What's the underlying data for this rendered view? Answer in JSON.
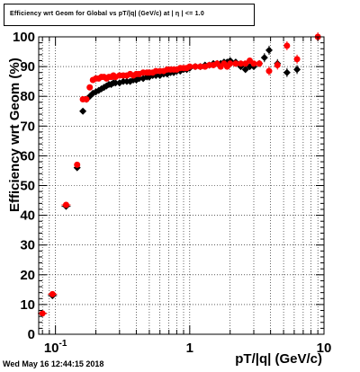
{
  "chart_data": {
    "type": "scatter",
    "title": "Efficiency wrt Geom for Global vs pT/|q| (GeV/c) at | η | <= 1.0",
    "xlabel": "pT/|q| (GeV/c)",
    "ylabel": "Efficiency wrt Geom (%)",
    "xscale": "log",
    "xlim": [
      0.075,
      10
    ],
    "ylim": [
      0,
      100
    ],
    "xticks": [
      {
        "value": 0.1,
        "label": "10^{-1}"
      },
      {
        "value": 1,
        "label": "1"
      },
      {
        "value": 10,
        "label": "10"
      }
    ],
    "yticks": [
      0,
      10,
      20,
      30,
      40,
      50,
      60,
      70,
      80,
      90,
      100
    ],
    "grid": true,
    "series": [
      {
        "marker": "diamond",
        "color": "#000000",
        "x": [
          0.08,
          0.095,
          0.12,
          0.145,
          0.16,
          0.17,
          0.18,
          0.19,
          0.2,
          0.21,
          0.22,
          0.23,
          0.24,
          0.25,
          0.26,
          0.27,
          0.28,
          0.3,
          0.32,
          0.34,
          0.36,
          0.38,
          0.4,
          0.42,
          0.45,
          0.48,
          0.5,
          0.53,
          0.56,
          0.6,
          0.64,
          0.68,
          0.72,
          0.76,
          0.8,
          0.85,
          0.9,
          0.95,
          1.0,
          1.1,
          1.2,
          1.3,
          1.4,
          1.5,
          1.6,
          1.7,
          1.8,
          1.9,
          2.0,
          2.2,
          2.4,
          2.6,
          2.8,
          3.0,
          3.3,
          3.6,
          3.9,
          4.5,
          5.3,
          6.3
        ],
        "y": [
          7,
          13,
          43,
          56,
          75,
          79,
          80,
          81,
          81.5,
          82,
          82.5,
          83,
          83.5,
          84,
          84,
          84.5,
          84.5,
          84.5,
          85,
          85,
          85,
          85.5,
          85.5,
          86,
          86,
          86.5,
          86.5,
          87,
          87,
          87,
          87.5,
          87.5,
          88,
          88,
          88.5,
          88.5,
          89,
          89,
          89.5,
          90,
          90,
          90.5,
          90.5,
          91,
          91,
          91,
          91.5,
          91.5,
          92,
          91.5,
          90,
          89,
          90,
          90,
          91,
          93,
          95.5,
          91,
          88,
          89
        ]
      },
      {
        "marker": "circle",
        "color": "#ff0000",
        "x": [
          0.08,
          0.095,
          0.12,
          0.145,
          0.16,
          0.17,
          0.18,
          0.19,
          0.2,
          0.21,
          0.22,
          0.23,
          0.24,
          0.25,
          0.26,
          0.27,
          0.28,
          0.3,
          0.32,
          0.34,
          0.36,
          0.38,
          0.4,
          0.42,
          0.45,
          0.48,
          0.5,
          0.53,
          0.56,
          0.6,
          0.64,
          0.68,
          0.72,
          0.76,
          0.8,
          0.85,
          0.9,
          0.95,
          1.0,
          1.1,
          1.2,
          1.3,
          1.4,
          1.5,
          1.6,
          1.7,
          1.8,
          1.9,
          2.0,
          2.2,
          2.4,
          2.6,
          2.8,
          3.0,
          3.3,
          3.9,
          4.5,
          5.3,
          6.3,
          9.0
        ],
        "y": [
          7,
          13.5,
          43.5,
          57,
          79,
          79,
          83,
          85.5,
          86,
          86,
          86.5,
          86.5,
          86,
          86.5,
          86.5,
          87,
          86.5,
          87,
          87,
          87,
          87.5,
          87,
          87.5,
          87.5,
          88,
          88,
          88,
          88,
          88.5,
          88.5,
          88.5,
          89,
          89,
          89,
          89,
          89.5,
          89.5,
          89.5,
          90,
          90,
          90,
          90,
          90.5,
          90.5,
          91,
          90,
          91,
          90,
          91,
          91,
          91,
          91,
          92,
          91,
          91,
          88.5,
          90.5,
          97,
          92.5,
          100
        ]
      }
    ]
  },
  "footer": {
    "datestamp": "Wed May 16 12:44:15 2018"
  }
}
